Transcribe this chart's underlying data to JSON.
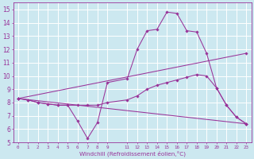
{
  "title": "",
  "xlabel": "Windchill (Refroidissement éolien,°C)",
  "background_color": "#cce8f0",
  "grid_color": "#ffffff",
  "line_color": "#993399",
  "xlim": [
    -0.5,
    23.5
  ],
  "ylim": [
    5,
    15.5
  ],
  "xticks": [
    0,
    1,
    2,
    3,
    4,
    5,
    6,
    7,
    8,
    9,
    11,
    12,
    13,
    14,
    15,
    16,
    17,
    18,
    19,
    20,
    21,
    22,
    23
  ],
  "yticks": [
    5,
    6,
    7,
    8,
    9,
    10,
    11,
    12,
    13,
    14,
    15
  ],
  "series": [
    {
      "x": [
        0,
        1,
        2,
        3,
        4,
        5,
        6,
        7,
        8,
        9,
        11,
        12,
        13,
        14,
        15,
        16,
        17,
        18,
        19,
        20,
        21,
        22,
        23
      ],
      "y": [
        8.3,
        8.2,
        8.0,
        7.9,
        7.8,
        7.8,
        7.8,
        7.8,
        7.8,
        8.0,
        8.2,
        8.5,
        9.0,
        9.3,
        9.5,
        9.7,
        9.9,
        10.1,
        10.0,
        9.1,
        7.8,
        6.9,
        6.4
      ]
    },
    {
      "x": [
        0,
        1,
        2,
        3,
        4,
        5,
        6,
        7,
        8,
        9,
        11,
        12,
        13,
        14,
        15,
        16,
        17,
        18,
        19,
        20,
        21,
        22,
        23
      ],
      "y": [
        8.3,
        8.2,
        8.0,
        7.9,
        7.8,
        7.8,
        6.6,
        5.3,
        6.5,
        9.5,
        9.8,
        12.0,
        13.4,
        13.5,
        14.8,
        14.7,
        13.4,
        13.3,
        11.7,
        9.1,
        7.8,
        6.9,
        6.4
      ]
    },
    {
      "x": [
        0,
        23
      ],
      "y": [
        8.3,
        11.7
      ]
    },
    {
      "x": [
        0,
        23
      ],
      "y": [
        8.3,
        6.4
      ]
    }
  ]
}
